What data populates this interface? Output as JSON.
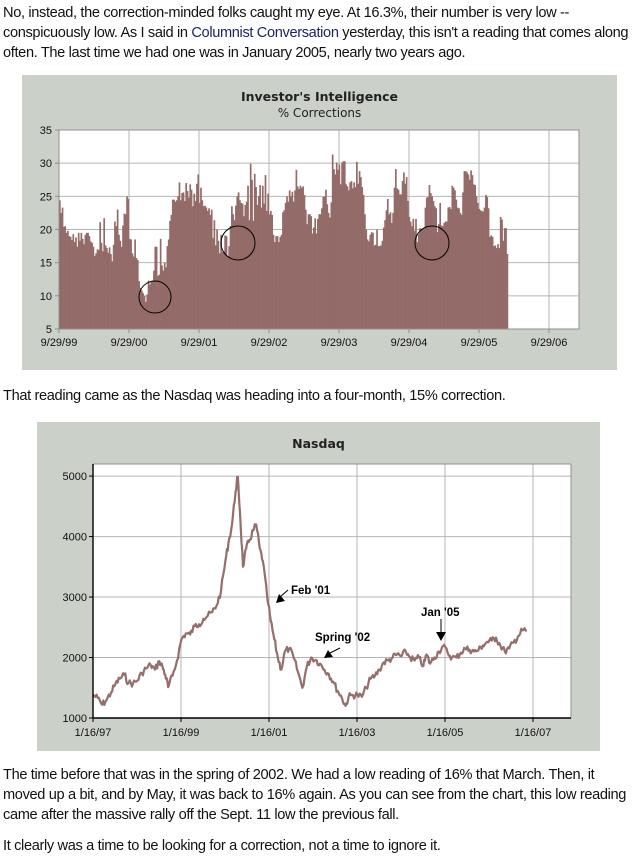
{
  "article": {
    "para1_before_link": "No, instead, the correction-minded folks caught my eye. At 16.3%, their number is very low -- conspicuously low. As I said in ",
    "para1_link": "Columnist Conversation",
    "para1_after_link": " yesterday, this isn't a reading that comes along often. The last time we had one was in January 2005, nearly two years ago.",
    "para2": "That reading came as the Nasdaq was heading into a four-month, 15% correction.",
    "para3": "The time before that was in the spring of 2002. We had a low reading of 16% that March. Then, it moved up a bit, and by May, it was back to 16% again. As you can see from the chart, this low reading came after the massive rally off the Sept. 11 low the previous fall.",
    "para4": "It clearly was a time to be looking for a correction, not a time to ignore it."
  },
  "colors": {
    "panel": "#cbd0c9",
    "bar_fill": "#936b68",
    "line": "#956e6b",
    "grid": "#b4b4b4",
    "link": "#1c1f6e"
  },
  "chart_data": [
    {
      "type": "bar",
      "title": "Investor's Intelligence",
      "subtitle": "% Corrections",
      "xlabel": "",
      "ylabel": "",
      "ylim": [
        5,
        35
      ],
      "yticks": [
        "5",
        "10",
        "15",
        "20",
        "25",
        "30",
        "35"
      ],
      "xticks": [
        "9/29/99",
        "9/29/00",
        "9/29/01",
        "9/29/02",
        "9/29/03",
        "9/29/04",
        "9/29/05",
        "9/29/06"
      ],
      "x_start_year": 1999.75,
      "x_end_year": 2007.1,
      "grid": true,
      "series_step_years": 0.0192,
      "values": [
        24.4,
        22.5,
        23.3,
        20.4,
        20.5,
        19.5,
        19.8,
        19.0,
        18.9,
        18.4,
        19.3,
        18.1,
        18.8,
        17.4,
        19.5,
        18.3,
        19.5,
        18.6,
        17.8,
        19.2,
        19.5,
        19.5,
        19.0,
        18.2,
        18.0,
        17.4,
        16.0,
        16.4,
        17.0,
        16.9,
        21.1,
        18.0,
        16.7,
        21.7,
        17.6,
        17.2,
        16.5,
        17.3,
        16.3,
        15.2,
        17.7,
        21.2,
        20.5,
        23.0,
        19.2,
        18.3,
        17.4,
        20.6,
        22.4,
        22.3,
        25.0,
        24.6,
        18.6,
        18.5,
        16.4,
        15.9,
        18.5,
        15.7,
        15.4,
        12.2,
        11.2,
        10.8,
        10.4,
        10.0,
        9.1,
        10.2,
        12.3,
        11.7,
        12.1,
        12.3,
        13.8,
        17.4,
        17.4,
        13.0,
        13.2,
        18.6,
        14.6,
        13.8,
        15.0,
        14.3,
        17.5,
        18.5,
        21.3,
        22.2,
        24.5,
        24.5,
        24.2,
        24.4,
        25.0,
        27.1,
        24.4,
        25.5,
        25.6,
        24.3,
        27.0,
        25.8,
        24.8,
        26.8,
        26.0,
        23.5,
        25.4,
        24.3,
        26.9,
        28.3,
        24.0,
        26.3,
        24.4,
        23.5,
        23.6,
        23.3,
        22.8,
        23.2,
        22.2,
        23.0,
        18.7,
        21.4,
        17.6,
        20.0,
        18.3,
        16.4,
        19.2,
        16.6,
        16.7,
        19.1,
        19.0,
        16.0,
        17.5,
        20.5,
        23.5,
        22.3,
        21.4,
        23.6,
        25.0,
        25.6,
        24.4,
        24.0,
        23.9,
        22.0,
        23.7,
        24.2,
        26.6,
        21.4,
        29.9,
        27.5,
        21.3,
        28.4,
        26.4,
        23.7,
        25.0,
        26.7,
        23.3,
        26.6,
        23.9,
        28.2,
        22.8,
        25.4,
        22.3,
        22.8,
        22.2,
        19.2,
        18.1,
        19.0,
        19.0,
        18.1,
        18.9,
        19.2,
        22.6,
        22.9,
        24.0,
        25.0,
        24.2,
        25.9,
        25.0,
        25.7,
        24.2,
        25.9,
        29.0,
        26.5,
        26.1,
        26.6,
        26.3,
        26.5,
        25.2,
        23.0,
        20.8,
        22.3,
        22.3,
        22.0,
        19.4,
        20.3,
        21.7,
        19.4,
        21.6,
        22.3,
        22.3,
        23.2,
        24.9,
        25.0,
        26.0,
        23.8,
        22.5,
        21.8,
        24.1,
        31.3,
        29.1,
        28.3,
        30.1,
        29.0,
        29.8,
        26.8,
        30.1,
        30.3,
        30.3,
        26.8,
        26.5,
        25.9,
        27.1,
        27.3,
        26.2,
        27.1,
        26.4,
        30.2,
        26.9,
        28.8,
        27.9,
        26.4,
        25.2,
        22.3,
        20.0,
        18.5,
        18.2,
        19.2,
        19.6,
        19.5,
        17.6,
        17.7,
        20.0,
        17.5,
        17.5,
        17.6,
        18.3,
        20.3,
        21.4,
        22.9,
        24.6,
        22.3,
        22.6,
        21.0,
        22.5,
        26.3,
        29.1,
        26.2,
        26.0,
        25.3,
        25.3,
        27.3,
        28.6,
        26.9,
        27.9,
        24.3,
        21.9,
        21.2,
        20.5,
        21.6,
        19.8,
        21.6,
        18.1,
        19.3,
        20.2,
        20.1,
        20.0,
        20.2,
        23.3,
        24.8,
        24.9,
        26.7,
        25.5,
        25.0,
        24.3,
        23.5,
        23.2,
        19.6,
        20.8,
        24.0,
        20.6,
        20.5,
        21.0,
        21.2,
        21.2,
        23.3,
        23.4,
        23.1,
        26.6,
        26.3,
        25.9,
        24.5,
        23.3,
        23.2,
        22.5,
        22.2,
        25.6,
        28.8,
        28.8,
        28.6,
        28.3,
        27.5,
        28.9,
        28.2,
        26.8,
        26.7,
        25.0,
        24.0,
        23.1,
        22.9,
        22.8,
        22.7,
        23.3,
        25.2,
        24.9,
        23.2,
        18.9,
        19.1,
        18.9,
        17.5,
        17.6,
        17.2,
        17.8,
        17.2,
        21.9,
        21.5,
        18.3,
        20.2,
        20.2,
        16.3
      ]
    },
    {
      "type": "line",
      "title": "Nasdaq",
      "xlabel": "",
      "ylabel": "",
      "ylim": [
        1000,
        5200
      ],
      "yticks": [
        "1000",
        "2000",
        "3000",
        "4000",
        "5000"
      ],
      "xticks": [
        "1/16/97",
        "1/16/99",
        "1/16/01",
        "1/16/03",
        "1/16/05",
        "1/16/07"
      ],
      "xlim_years": [
        1997.04,
        2008.3
      ],
      "grid": true,
      "x": [
        1997.04,
        1997.15,
        1997.25,
        1997.35,
        1997.45,
        1997.55,
        1997.65,
        1997.75,
        1997.85,
        1997.95,
        1998.05,
        1998.15,
        1998.25,
        1998.35,
        1998.45,
        1998.55,
        1998.62,
        1998.68,
        1998.75,
        1998.85,
        1998.95,
        1999.05,
        1999.15,
        1999.25,
        1999.35,
        1999.45,
        1999.55,
        1999.65,
        1999.75,
        1999.85,
        1999.95,
        2000.05,
        2000.12,
        2000.2,
        2000.28,
        2000.33,
        2000.38,
        2000.45,
        2000.52,
        2000.6,
        2000.68,
        2000.75,
        2000.83,
        2000.9,
        2001.0,
        2001.08,
        2001.16,
        2001.24,
        2001.32,
        2001.4,
        2001.5,
        2001.6,
        2001.7,
        2001.8,
        2001.9,
        2002.0,
        2002.1,
        2002.2,
        2002.3,
        2002.4,
        2002.5,
        2002.6,
        2002.7,
        2002.78,
        2002.85,
        2002.95,
        2003.05,
        2003.15,
        2003.25,
        2003.35,
        2003.45,
        2003.55,
        2003.65,
        2003.75,
        2003.85,
        2003.95,
        2004.05,
        2004.15,
        2004.25,
        2004.35,
        2004.45,
        2004.55,
        2004.62,
        2004.7,
        2004.8,
        2004.9,
        2005.0,
        2005.1,
        2005.2,
        2005.3,
        2005.4,
        2005.5,
        2005.6,
        2005.7,
        2005.8,
        2005.9,
        2006.0,
        2006.1,
        2006.2,
        2006.3,
        2006.4,
        2006.5,
        2006.6,
        2006.7,
        2006.8,
        2006.9
      ],
      "y": [
        1380,
        1330,
        1220,
        1300,
        1420,
        1560,
        1650,
        1720,
        1580,
        1570,
        1620,
        1740,
        1820,
        1880,
        1800,
        1940,
        1850,
        1720,
        1510,
        1700,
        1950,
        2300,
        2400,
        2380,
        2520,
        2550,
        2640,
        2690,
        2750,
        2860,
        3100,
        3600,
        3900,
        4200,
        4750,
        4990,
        4400,
        3500,
        3800,
        3950,
        4100,
        4200,
        3800,
        3600,
        3000,
        2600,
        2300,
        2000,
        1800,
        2100,
        2150,
        2000,
        1760,
        1500,
        1850,
        2000,
        1960,
        1900,
        1800,
        1730,
        1600,
        1450,
        1330,
        1200,
        1350,
        1380,
        1380,
        1350,
        1500,
        1650,
        1700,
        1800,
        1920,
        1950,
        2000,
        2050,
        2020,
        2100,
        2000,
        1950,
        2000,
        1860,
        2050,
        1900,
        2000,
        2100,
        2190,
        2080,
        2000,
        2000,
        2080,
        2150,
        2130,
        2100,
        2120,
        2200,
        2260,
        2280,
        2330,
        2200,
        2100,
        2150,
        2250,
        2350,
        2450,
        2440
      ]
    }
  ],
  "annotations": {
    "feb01": "Feb '01",
    "spring02": "Spring '02",
    "jan05": "Jan '05"
  }
}
